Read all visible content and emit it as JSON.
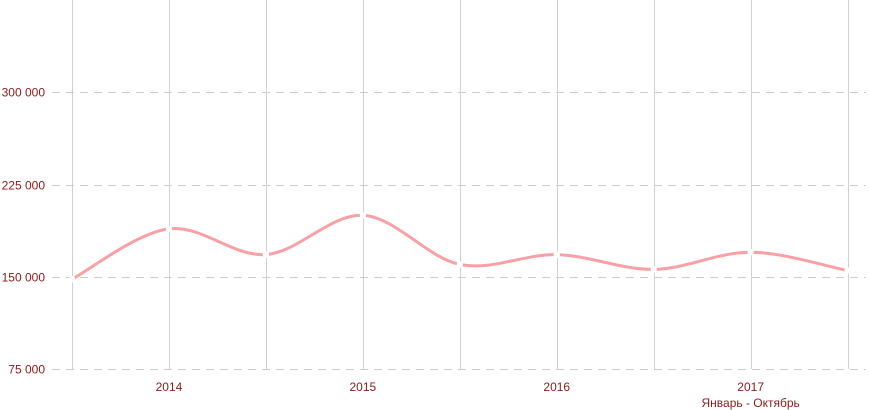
{
  "colors": {
    "line": "#f7a1a6",
    "label": "#8b1a1a",
    "vgrid": "#d0d0d0",
    "hgrid": "#cccccc"
  },
  "chart_data": {
    "type": "line",
    "title": "",
    "xlabel": "",
    "ylabel": "",
    "ylim": [
      75000,
      375000
    ],
    "yticks": [
      75000,
      150000,
      225000,
      300000
    ],
    "ytick_labels": [
      "75 000",
      "150 000",
      "225 000",
      "300 000"
    ],
    "xtick_labels": [
      {
        "label": "2014",
        "note": ""
      },
      {
        "label": "2015",
        "note": ""
      },
      {
        "label": "2016",
        "note": ""
      },
      {
        "label": "2017",
        "note": "Январь - Октябрь"
      }
    ],
    "grid": true,
    "series": [
      {
        "values": [
          148000,
          189000,
          168000,
          200000,
          160000,
          168000,
          156000,
          170000,
          155000
        ]
      }
    ]
  }
}
